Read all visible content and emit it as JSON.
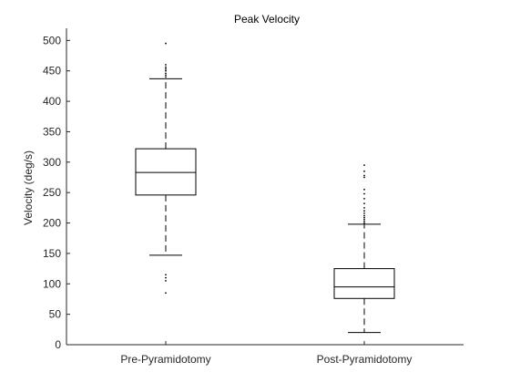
{
  "chart_data": {
    "type": "box",
    "title": "Peak Velocity",
    "xlabel": "",
    "ylabel": "Velocity (deg/s)",
    "ylim": [
      0,
      520
    ],
    "yticks": [
      0,
      50,
      100,
      150,
      200,
      250,
      300,
      350,
      400,
      450,
      500
    ],
    "categories": [
      "Pre-Pyramidotomy",
      "Post-Pyramidotomy"
    ],
    "boxes": [
      {
        "label": "Pre-Pyramidotomy",
        "whisker_low": 147,
        "q1": 246,
        "median": 283,
        "q3": 322,
        "whisker_high": 437,
        "outliers": [
          85,
          105,
          110,
          115,
          440,
          443,
          446,
          450,
          453,
          456,
          460,
          495
        ]
      },
      {
        "label": "Post-Pyramidotomy",
        "whisker_low": 20,
        "q1": 76,
        "median": 95,
        "q3": 125,
        "whisker_high": 198,
        "outliers": [
          200,
          203,
          206,
          209,
          212,
          216,
          220,
          225,
          232,
          240,
          248,
          255,
          275,
          278,
          285,
          295
        ]
      }
    ],
    "colors": {
      "box": "#000000",
      "whisker": "#000000",
      "outlier": "#000000",
      "axis": "#262626"
    },
    "grid": false,
    "legend": "none"
  }
}
